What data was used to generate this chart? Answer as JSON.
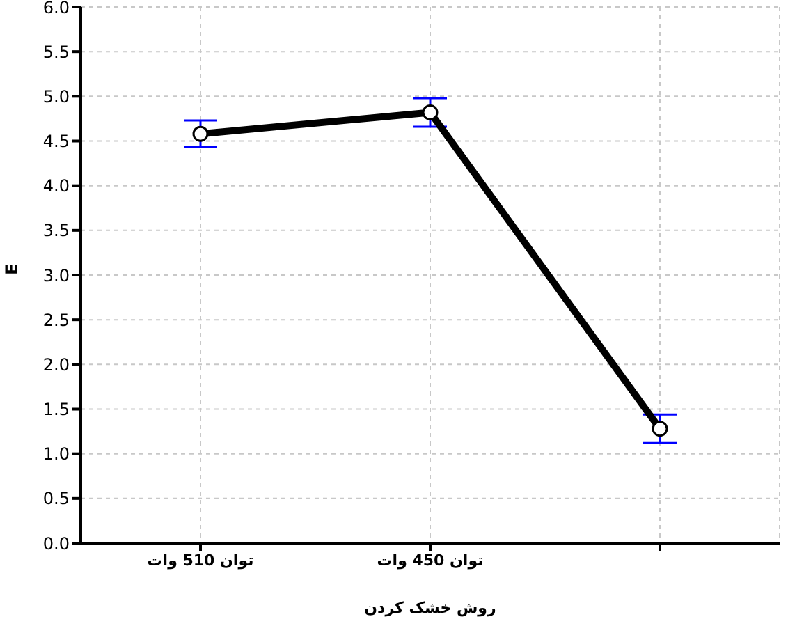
{
  "chart_data": {
    "type": "line",
    "xlabel": "روش خشک کردن",
    "ylabel": "E",
    "categories": [
      "توان 510 وات",
      "توان 450 وات",
      null
    ],
    "series": [
      {
        "color": "#000000",
        "values": [
          4.58,
          4.82,
          1.28
        ],
        "errors": [
          0.15,
          0.16,
          0.16
        ]
      }
    ],
    "ylim": [
      0,
      6
    ],
    "yticks": [
      {
        "value": 0,
        "label": "0.0"
      },
      {
        "value": 0.5,
        "label": "0.5"
      },
      {
        "value": 1,
        "label": "1.0"
      },
      {
        "value": 1.5,
        "label": "1.5"
      },
      {
        "value": 2,
        "label": "2.0"
      },
      {
        "value": 2.5,
        "label": "2.5"
      },
      {
        "value": 3,
        "label": "3.0"
      },
      {
        "value": 3.5,
        "label": "3.5"
      },
      {
        "value": 4,
        "label": "4.0"
      },
      {
        "value": 4.5,
        "label": "4.5"
      },
      {
        "value": 5,
        "label": "5.0"
      },
      {
        "value": 5.5,
        "label": "5.5"
      },
      {
        "value": 6,
        "label": "6.0"
      }
    ],
    "grid": true,
    "marker": "circle",
    "line_style": "solid",
    "legend": false
  }
}
